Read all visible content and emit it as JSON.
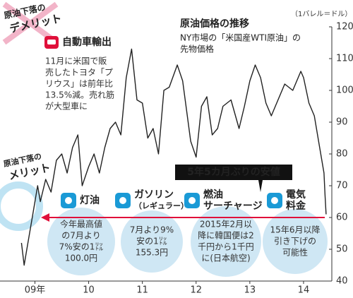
{
  "chart_data": {
    "type": "line",
    "title": "原油価格の推移",
    "subtitle": [
      "NY市場の「米国産WTI原油」の",
      "先物価格"
    ],
    "unit": "（1バレル＝ドル）",
    "x": [
      2009.25,
      2009.3,
      2009.35,
      2009.45,
      2009.55,
      2009.6,
      2009.7,
      2009.8,
      2009.9,
      2010.0,
      2010.1,
      2010.2,
      2010.3,
      2010.38,
      2010.5,
      2010.6,
      2010.7,
      2010.8,
      2010.9,
      2011.0,
      2011.1,
      2011.2,
      2011.3,
      2011.4,
      2011.5,
      2011.6,
      2011.7,
      2011.8,
      2011.9,
      2012.0,
      2012.15,
      2012.25,
      2012.4,
      2012.5,
      2012.6,
      2012.7,
      2012.8,
      2012.9,
      2013.0,
      2013.15,
      2013.3,
      2013.4,
      2013.5,
      2013.6,
      2013.7,
      2013.8,
      2013.9,
      2014.0,
      2014.15,
      2014.3,
      2014.45,
      2014.5,
      2014.6,
      2014.7,
      2014.8,
      2014.88,
      2014.9,
      2014.92
    ],
    "values": [
      52,
      45,
      50,
      60,
      70,
      65,
      72,
      68,
      78,
      80,
      74,
      82,
      86,
      70,
      76,
      80,
      74,
      82,
      88,
      90,
      86,
      104,
      113,
      97,
      96,
      85,
      88,
      80,
      100,
      101,
      108,
      103,
      84,
      79,
      95,
      98,
      86,
      88,
      95,
      97,
      88,
      95,
      103,
      108,
      104,
      96,
      92,
      96,
      102,
      100,
      106,
      104,
      96,
      92,
      82,
      74,
      67,
      61
    ],
    "color": "#222222",
    "xlim": [
      2008.85,
      2015.0
    ],
    "xticks": [
      {
        "value": 2009.5,
        "label": "09年"
      },
      {
        "value": 2010.5,
        "label": "10"
      },
      {
        "value": 2011.5,
        "label": "11"
      },
      {
        "value": 2012.5,
        "label": "12"
      },
      {
        "value": 2013.5,
        "label": "13"
      },
      {
        "value": 2014.5,
        "label": "14"
      }
    ],
    "ylim": [
      40,
      120
    ],
    "yticks": [
      40,
      50,
      60,
      70,
      80,
      90,
      100,
      110,
      120
    ],
    "annotations": {
      "demerit": {
        "heading": [
          "原油下落の",
          "デメリット"
        ],
        "topic": "自動車輸出",
        "text": [
          "11月に米国で販",
          "売したトヨタ「プ",
          "リウス」は前年比",
          "13.5%減。売れ筋",
          "が大型車に"
        ]
      },
      "merit": {
        "heading": [
          "原油下落の",
          "メリット"
        ]
      },
      "low": "5年5カ月ぶりの安値",
      "items": [
        {
          "label": [
            "灯油"
          ],
          "text": [
            "今年最高値",
            "の7月より",
            "7%安の1㍑",
            "100.0円"
          ]
        },
        {
          "label": [
            "ガソリン",
            "（レギュラー）"
          ],
          "text": [
            "7月より9%",
            "安の1㍑",
            "155.3円"
          ]
        },
        {
          "label": [
            "燃油",
            "サーチャージ"
          ],
          "text": [
            "2015年2月以",
            "降に韓国便は2",
            "千円から1千円",
            "に(日本航空)"
          ]
        },
        {
          "label": [
            "電気",
            "料金"
          ],
          "text": [
            "15年6月以降",
            "引き下げの",
            "可能性"
          ]
        }
      ]
    }
  }
}
